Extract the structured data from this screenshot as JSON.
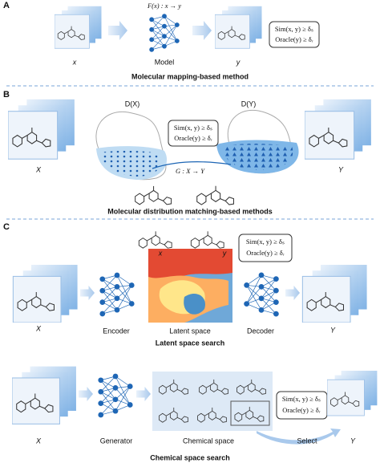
{
  "panel_a": {
    "label": "A",
    "formula": "F(x) : x → y",
    "input_label": "x",
    "model_label": "Model",
    "output_label": "y",
    "criteria": [
      "Sim(x, y) ≥ δₛ",
      "Oracle(y) ≥ δᵣ"
    ],
    "title": "Molecular mapping-based method"
  },
  "panel_b": {
    "label": "B",
    "source_dist": "D(X)",
    "target_dist": "D(Y)",
    "input_label": "X",
    "output_label": "Y",
    "criteria": [
      "Sim(x, y) ≥ δₛ",
      "Oracle(y) ≥ δᵣ"
    ],
    "mapping": "G : X → Y",
    "title": "Molecular distribution matching-based methods"
  },
  "panel_c": {
    "label": "C",
    "latent": {
      "x_marker": "x",
      "y_marker": "y",
      "criteria": [
        "Sim(x, y) ≥ δₛ",
        "Oracle(y) ≥ δᵣ"
      ],
      "input_label": "X",
      "encoder_label": "Encoder",
      "space_label": "Latent space",
      "decoder_label": "Decoder",
      "output_label": "Y",
      "title": "Latent space search"
    },
    "chemical": {
      "input_label": "X",
      "generator_label": "Generator",
      "space_label": "Chemical space",
      "criteria": [
        "Sim(x, y) ≥ δₛ",
        "Oracle(y) ≥ δᵣ"
      ],
      "select_label": "Select",
      "output_label": "Y",
      "title": "Chemical space search"
    }
  }
}
